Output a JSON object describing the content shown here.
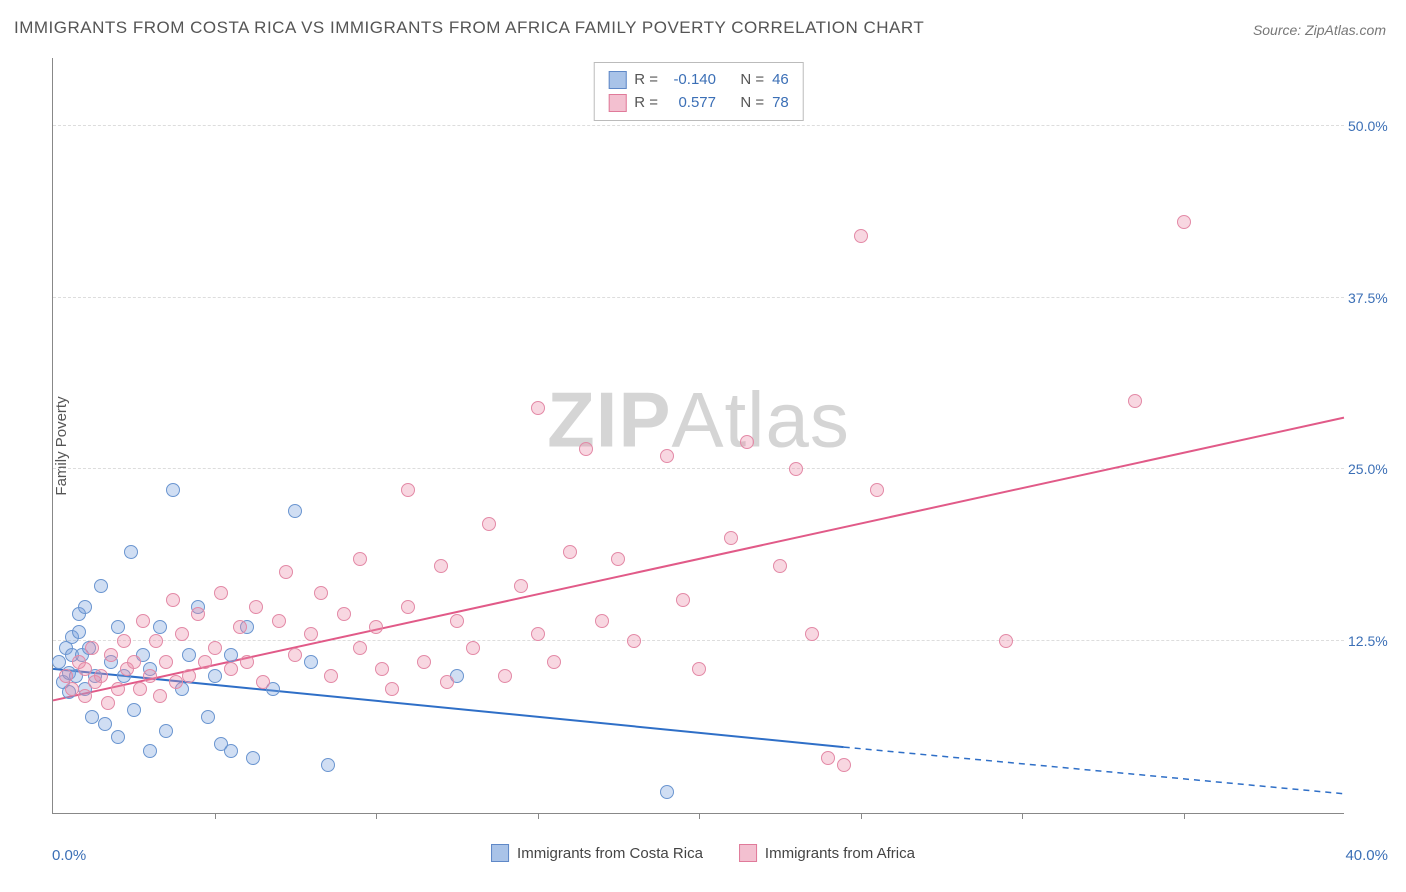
{
  "title": "IMMIGRANTS FROM COSTA RICA VS IMMIGRANTS FROM AFRICA FAMILY POVERTY CORRELATION CHART",
  "source": "Source: ZipAtlas.com",
  "watermark_bold": "ZIP",
  "watermark_light": "Atlas",
  "y_axis_label": "Family Poverty",
  "chart": {
    "type": "scatter",
    "background_color": "#ffffff",
    "grid_color": "#dddddd",
    "axis_color": "#888888",
    "xlim": [
      0,
      40
    ],
    "ylim": [
      0,
      55
    ],
    "x_tick_step": 5,
    "x_min_label": "0.0%",
    "x_max_label": "40.0%",
    "y_ticks": [
      {
        "value": 12.5,
        "label": "12.5%"
      },
      {
        "value": 25.0,
        "label": "25.0%"
      },
      {
        "value": 37.5,
        "label": "37.5%"
      },
      {
        "value": 50.0,
        "label": "50.0%"
      }
    ],
    "series": [
      {
        "name": "Immigrants from Costa Rica",
        "fill": "rgba(120,160,220,0.35)",
        "stroke": "#6a95d0",
        "swatch_fill": "#a9c3e8",
        "swatch_border": "#5f88c7",
        "line_color": "#2f6fc7",
        "r_label": "R =",
        "n_label": "N =",
        "R": "-0.140",
        "N": "46",
        "marker_radius": 7,
        "trend": {
          "x1": 0,
          "y1": 10.5,
          "x2": 24.5,
          "y2": 4.8,
          "x_ext": 40,
          "y_ext": 1.4
        },
        "points": [
          [
            0.2,
            11.0
          ],
          [
            0.3,
            9.5
          ],
          [
            0.4,
            12.0
          ],
          [
            0.5,
            10.2
          ],
          [
            0.5,
            8.8
          ],
          [
            0.6,
            11.5
          ],
          [
            0.6,
            12.8
          ],
          [
            0.7,
            10.0
          ],
          [
            0.8,
            13.2
          ],
          [
            0.8,
            14.5
          ],
          [
            0.9,
            11.5
          ],
          [
            1.0,
            9.0
          ],
          [
            1.0,
            15.0
          ],
          [
            1.1,
            12.0
          ],
          [
            1.2,
            7.0
          ],
          [
            1.3,
            10.0
          ],
          [
            1.5,
            16.5
          ],
          [
            1.6,
            6.5
          ],
          [
            1.8,
            11.0
          ],
          [
            2.0,
            13.5
          ],
          [
            2.0,
            5.5
          ],
          [
            2.2,
            10.0
          ],
          [
            2.4,
            19.0
          ],
          [
            2.5,
            7.5
          ],
          [
            2.8,
            11.5
          ],
          [
            3.0,
            4.5
          ],
          [
            3.0,
            10.5
          ],
          [
            3.3,
            13.5
          ],
          [
            3.5,
            6.0
          ],
          [
            3.7,
            23.5
          ],
          [
            4.0,
            9.0
          ],
          [
            4.2,
            11.5
          ],
          [
            4.5,
            15.0
          ],
          [
            4.8,
            7.0
          ],
          [
            5.0,
            10.0
          ],
          [
            5.2,
            5.0
          ],
          [
            5.5,
            11.5
          ],
          [
            5.5,
            4.5
          ],
          [
            6.0,
            13.5
          ],
          [
            6.2,
            4.0
          ],
          [
            6.8,
            9.0
          ],
          [
            7.5,
            22.0
          ],
          [
            8.0,
            11.0
          ],
          [
            8.5,
            3.5
          ],
          [
            12.5,
            10.0
          ],
          [
            19.0,
            1.5
          ]
        ]
      },
      {
        "name": "Immigrants from Africa",
        "fill": "rgba(235,140,170,0.35)",
        "stroke": "#e389a6",
        "swatch_fill": "#f3c0d0",
        "swatch_border": "#e07a9a",
        "line_color": "#e15a88",
        "r_label": "R =",
        "n_label": "N =",
        "R": "0.577",
        "N": "78",
        "marker_radius": 7,
        "trend": {
          "x1": 0,
          "y1": 8.2,
          "x2": 40,
          "y2": 28.8
        },
        "points": [
          [
            0.4,
            10.0
          ],
          [
            0.6,
            9.0
          ],
          [
            0.8,
            11.0
          ],
          [
            1.0,
            10.5
          ],
          [
            1.0,
            8.5
          ],
          [
            1.2,
            12.0
          ],
          [
            1.3,
            9.5
          ],
          [
            1.5,
            10.0
          ],
          [
            1.7,
            8.0
          ],
          [
            1.8,
            11.5
          ],
          [
            2.0,
            9.0
          ],
          [
            2.2,
            12.5
          ],
          [
            2.3,
            10.5
          ],
          [
            2.5,
            11.0
          ],
          [
            2.7,
            9.0
          ],
          [
            2.8,
            14.0
          ],
          [
            3.0,
            10.0
          ],
          [
            3.2,
            12.5
          ],
          [
            3.3,
            8.5
          ],
          [
            3.5,
            11.0
          ],
          [
            3.7,
            15.5
          ],
          [
            3.8,
            9.5
          ],
          [
            4.0,
            13.0
          ],
          [
            4.2,
            10.0
          ],
          [
            4.5,
            14.5
          ],
          [
            4.7,
            11.0
          ],
          [
            5.0,
            12.0
          ],
          [
            5.2,
            16.0
          ],
          [
            5.5,
            10.5
          ],
          [
            5.8,
            13.5
          ],
          [
            6.0,
            11.0
          ],
          [
            6.3,
            15.0
          ],
          [
            6.5,
            9.5
          ],
          [
            7.0,
            14.0
          ],
          [
            7.2,
            17.5
          ],
          [
            7.5,
            11.5
          ],
          [
            8.0,
            13.0
          ],
          [
            8.3,
            16.0
          ],
          [
            8.6,
            10.0
          ],
          [
            9.0,
            14.5
          ],
          [
            9.5,
            18.5
          ],
          [
            9.5,
            12.0
          ],
          [
            10.0,
            13.5
          ],
          [
            10.2,
            10.5
          ],
          [
            10.5,
            9.0
          ],
          [
            11.0,
            23.5
          ],
          [
            11.0,
            15.0
          ],
          [
            11.5,
            11.0
          ],
          [
            12.0,
            18.0
          ],
          [
            12.2,
            9.5
          ],
          [
            12.5,
            14.0
          ],
          [
            13.0,
            12.0
          ],
          [
            13.5,
            21.0
          ],
          [
            14.0,
            10.0
          ],
          [
            14.5,
            16.5
          ],
          [
            15.0,
            13.0
          ],
          [
            15.0,
            29.5
          ],
          [
            15.5,
            11.0
          ],
          [
            16.0,
            19.0
          ],
          [
            16.5,
            26.5
          ],
          [
            17.0,
            14.0
          ],
          [
            17.5,
            18.5
          ],
          [
            18.0,
            12.5
          ],
          [
            19.0,
            26.0
          ],
          [
            19.5,
            15.5
          ],
          [
            20.0,
            10.5
          ],
          [
            21.0,
            20.0
          ],
          [
            21.5,
            27.0
          ],
          [
            22.5,
            18.0
          ],
          [
            23.0,
            25.0
          ],
          [
            23.5,
            13.0
          ],
          [
            24.0,
            4.0
          ],
          [
            25.0,
            42.0
          ],
          [
            25.5,
            23.5
          ],
          [
            29.5,
            12.5
          ],
          [
            33.5,
            30.0
          ],
          [
            35.0,
            43.0
          ],
          [
            24.5,
            3.5
          ]
        ]
      }
    ]
  },
  "legend_bottom": [
    {
      "label": "Immigrants from Costa Rica",
      "swatch_fill": "#a9c3e8",
      "swatch_border": "#5f88c7"
    },
    {
      "label": "Immigrants from Africa",
      "swatch_fill": "#f3c0d0",
      "swatch_border": "#e07a9a"
    }
  ]
}
